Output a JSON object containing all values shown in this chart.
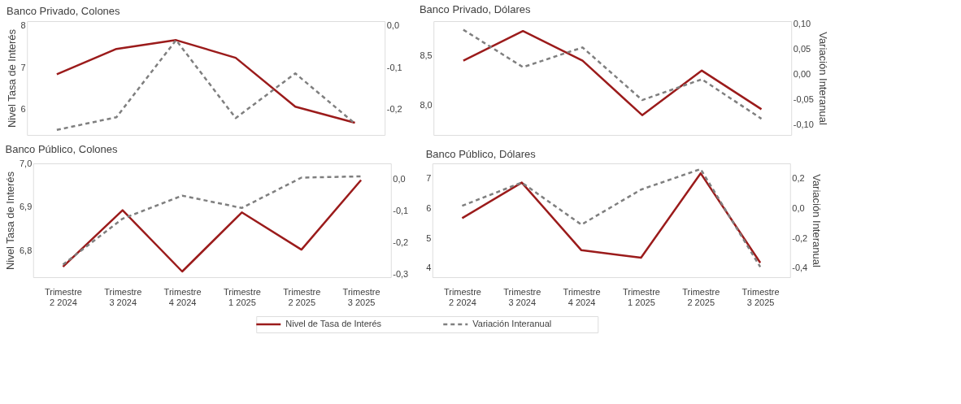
{
  "chart_data": [
    {
      "type": "line",
      "title": "Banco Privado, Colones",
      "categories": [
        null,
        null,
        null,
        null,
        null,
        null
      ],
      "ylabel": "Nivel Tasa de Interés",
      "ylim": [
        5.4,
        8.1
      ],
      "yticks": [
        6,
        7,
        8
      ],
      "y2lim": [
        -0.26,
        0.01
      ],
      "y2ticks": [
        {
          "value": -0.2,
          "label": "-0,2"
        },
        {
          "value": -0.1,
          "label": "-0,1"
        },
        {
          "value": 0,
          "label": "0,0"
        }
      ],
      "tick_labels": "y",
      "legend": "bottom",
      "series": [
        {
          "name": "Nivel de Tasa de Interés",
          "color": "#9b1b1b",
          "line_style": "solid",
          "values": [
            6.84,
            7.44,
            7.65,
            7.23,
            6.07,
            5.69
          ]
        },
        {
          "name": "Variación Interanual",
          "color": "#7f7f7f",
          "line_style": "dashed",
          "axis": "y2",
          "values": [
            -0.248,
            -0.218,
            -0.035,
            -0.22,
            -0.114,
            -0.233
          ]
        }
      ]
    },
    {
      "type": "line",
      "title": "Banco Privado, Dólares",
      "categories": [
        null,
        null,
        null,
        null,
        null,
        null
      ],
      "y2label": "Variación Interanual",
      "ylim": [
        7.7,
        8.85
      ],
      "yticks": [
        {
          "value": 8.0,
          "label": "8,0"
        },
        {
          "value": 8.5,
          "label": "8,5"
        }
      ],
      "y2lim": [
        -0.12,
        0.105
      ],
      "y2ticks": [
        {
          "value": -0.1,
          "label": "-0,10"
        },
        {
          "value": -0.05,
          "label": "-0,05"
        },
        {
          "value": 0,
          "label": "0,00"
        },
        {
          "value": 0.05,
          "label": "0,05"
        },
        {
          "value": 0.1,
          "label": "0,10"
        }
      ],
      "tick_labels": "y",
      "series": [
        {
          "color": "#9b1b1b",
          "line_style": "solid",
          "values": [
            8.45,
            8.75,
            8.45,
            7.9,
            8.35,
            7.96
          ]
        },
        {
          "color": "#7f7f7f",
          "line_style": "dashed",
          "axis": "y2",
          "values": [
            0.088,
            0.014,
            0.053,
            -0.051,
            -0.01,
            -0.088
          ]
        }
      ]
    },
    {
      "type": "line",
      "title": "Banco Público, Colones",
      "categories": [
        "Trimestre 2 2024",
        "Trimestre 3 2024",
        "Trimestre 4 2024",
        "Trimestre 1 2025",
        "Trimestre 2 2025",
        "Trimestre 3 2025"
      ],
      "ylabel": "Nivel Tasa de Interés",
      "ylim": [
        6.74,
        7.0
      ],
      "yticks": [
        {
          "value": 6.8,
          "label": "6,8"
        },
        {
          "value": 6.9,
          "label": "6,9"
        },
        {
          "value": 7.0,
          "label": "7,0"
        }
      ],
      "y2lim": [
        -0.31,
        0.05
      ],
      "y2ticks": [
        {
          "value": -0.3,
          "label": "-0,3"
        },
        {
          "value": -0.2,
          "label": "-0,2"
        },
        {
          "value": -0.1,
          "label": "-0,1"
        },
        {
          "value": 0,
          "label": "0,0"
        }
      ],
      "series": [
        {
          "color": "#9b1b1b",
          "line_style": "solid",
          "values": [
            6.764,
            6.893,
            6.753,
            6.888,
            6.803,
            6.962
          ]
        },
        {
          "color": "#7f7f7f",
          "line_style": "dashed",
          "axis": "y2",
          "values": [
            -0.27,
            -0.125,
            -0.052,
            -0.091,
            0.005,
            0.009
          ]
        }
      ]
    },
    {
      "type": "line",
      "title": "Banco Público, Dólares",
      "categories": [
        "Trimestre 2 2024",
        "Trimestre 3 2024",
        "Trimestre 4 2024",
        "Trimestre 1 2025",
        "Trimestre 2 2025",
        "Trimestre 3 2025"
      ],
      "y2label": "Variación Interanual",
      "ylim": [
        3.7,
        7.5
      ],
      "yticks": [
        4,
        5,
        6,
        7
      ],
      "y2lim": [
        -0.46,
        0.3
      ],
      "y2ticks": [
        {
          "value": -0.4,
          "label": "-0,4"
        },
        {
          "value": -0.2,
          "label": "-0,2"
        },
        {
          "value": 0,
          "label": "0,0"
        },
        {
          "value": 0.2,
          "label": "0,2"
        }
      ],
      "series": [
        {
          "color": "#9b1b1b",
          "line_style": "solid",
          "values": [
            5.67,
            6.86,
            4.6,
            4.35,
            7.17,
            4.18
          ]
        },
        {
          "color": "#7f7f7f",
          "line_style": "dashed",
          "axis": "y2",
          "values": [
            0.017,
            0.172,
            -0.109,
            0.125,
            0.262,
            -0.392
          ]
        }
      ]
    }
  ]
}
